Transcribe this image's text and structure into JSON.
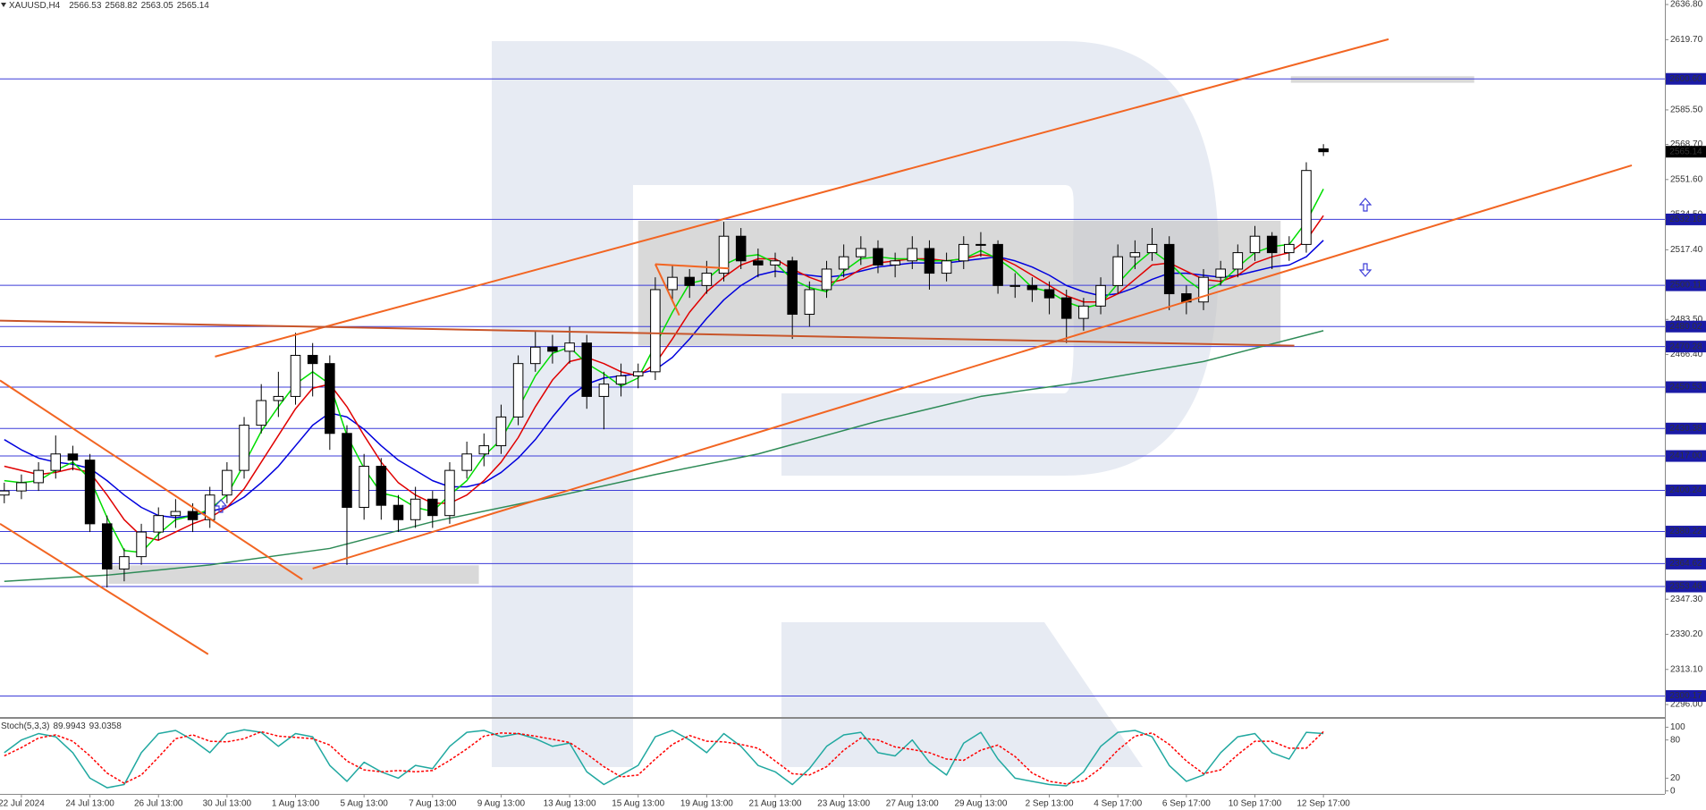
{
  "chart_data": [
    {
      "type": "candlestick",
      "title": "XAUUSD,H4",
      "xlim": [
        -0.25,
        96.93
      ],
      "ylim": [
        2290.8,
        2639.0
      ],
      "xticks": [
        {
          "value": 1,
          "label": "22 Jul 2024"
        },
        {
          "value": 5,
          "label": "24 Jul 13:00"
        },
        {
          "value": 9,
          "label": "26 Jul 13:00"
        },
        {
          "value": 13,
          "label": "30 Jul 13:00"
        },
        {
          "value": 17,
          "label": "1 Aug 13:00"
        },
        {
          "value": 21,
          "label": "5 Aug 13:00"
        },
        {
          "value": 25,
          "label": "7 Aug 13:00"
        },
        {
          "value": 29,
          "label": "9 Aug 13:00"
        },
        {
          "value": 33,
          "label": "13 Aug 13:00"
        },
        {
          "value": 37,
          "label": "15 Aug 13:00"
        },
        {
          "value": 41,
          "label": "19 Aug 13:00"
        },
        {
          "value": 45,
          "label": "21 Aug 13:00"
        },
        {
          "value": 49,
          "label": "23 Aug 13:00"
        },
        {
          "value": 53,
          "label": "27 Aug 13:00"
        },
        {
          "value": 57,
          "label": "29 Aug 13:00"
        },
        {
          "value": 61,
          "label": "2 Sep 13:00"
        },
        {
          "value": 65,
          "label": "4 Sep 17:00"
        },
        {
          "value": 69,
          "label": "6 Sep 17:00"
        },
        {
          "value": 73,
          "label": "10 Sep 17:00"
        },
        {
          "value": 77,
          "label": "12 Sep 17:00"
        }
      ],
      "yticks": [
        {
          "value": 2636.8,
          "label": "2636.80"
        },
        {
          "value": 2619.7,
          "label": "2619.70"
        },
        {
          "value": 2585.5,
          "label": "2585.50"
        },
        {
          "value": 2568.7,
          "label": "2568.70"
        },
        {
          "value": 2551.6,
          "label": "2551.60"
        },
        {
          "value": 2534.5,
          "label": "2534.50"
        },
        {
          "value": 2517.4,
          "label": "2517.40"
        },
        {
          "value": 2483.5,
          "label": "2483.50"
        },
        {
          "value": 2466.4,
          "label": "2466.40"
        },
        {
          "value": 2347.3,
          "label": "2347.30"
        },
        {
          "value": 2330.2,
          "label": "2330.20"
        },
        {
          "value": 2313.1,
          "label": "2313.10"
        },
        {
          "value": 2296,
          "label": "2296.00"
        }
      ],
      "levels": [
        {
          "value": 2600.6,
          "label": "2600.60"
        },
        2532.18,
        2500.11,
        2480.02,
        2470.28,
        2450.53,
        2430.38,
        {
          "value": 2417,
          "label": "2417.00"
        },
        2400.24,
        2380.22,
        2364.62,
        2353.46,
        2300.17
      ],
      "level_color": "#3c3cd8",
      "level_label_color": "#1a1aa6",
      "up_color": "#ffffff",
      "down_color": "#000000",
      "zone_color": "#c4c4c4",
      "candles": [
        [
          2398,
          2404,
          2394,
          2400
        ],
        [
          2400,
          2408,
          2396,
          2404
        ],
        [
          2404,
          2414,
          2400,
          2410
        ],
        [
          2410,
          2427,
          2406,
          2418
        ],
        [
          2418,
          2422,
          2410,
          2415
        ],
        [
          2415,
          2418,
          2380,
          2384
        ],
        [
          2384,
          2388,
          2353,
          2362
        ],
        [
          2362,
          2372,
          2356,
          2368
        ],
        [
          2368,
          2384,
          2364,
          2380
        ],
        [
          2380,
          2392,
          2376,
          2388
        ],
        [
          2388,
          2396,
          2382,
          2390
        ],
        [
          2390,
          2394,
          2380,
          2386
        ],
        [
          2386,
          2402,
          2382,
          2398
        ],
        [
          2398,
          2414,
          2394,
          2410
        ],
        [
          2410,
          2436,
          2406,
          2432
        ],
        [
          2432,
          2452,
          2428,
          2444
        ],
        [
          2444,
          2458,
          2436,
          2446
        ],
        [
          2446,
          2477,
          2442,
          2466
        ],
        [
          2466,
          2472,
          2446,
          2462
        ],
        [
          2462,
          2466,
          2420,
          2428
        ],
        [
          2428,
          2432,
          2364,
          2392
        ],
        [
          2392,
          2418,
          2386,
          2412
        ],
        [
          2412,
          2416,
          2386,
          2393
        ],
        [
          2393,
          2398,
          2380,
          2386
        ],
        [
          2386,
          2402,
          2382,
          2396
        ],
        [
          2396,
          2400,
          2382,
          2388
        ],
        [
          2388,
          2414,
          2384,
          2410
        ],
        [
          2410,
          2424,
          2406,
          2418
        ],
        [
          2418,
          2428,
          2412,
          2422
        ],
        [
          2422,
          2442,
          2418,
          2436
        ],
        [
          2436,
          2466,
          2432,
          2462
        ],
        [
          2462,
          2478,
          2458,
          2470
        ],
        [
          2470,
          2476,
          2462,
          2468
        ],
        [
          2468,
          2480,
          2462,
          2472
        ],
        [
          2472,
          2476,
          2440,
          2446
        ],
        [
          2446,
          2458,
          2430,
          2452
        ],
        [
          2452,
          2462,
          2446,
          2456
        ],
        [
          2456,
          2462,
          2450,
          2458
        ],
        [
          2458,
          2504,
          2454,
          2498
        ],
        [
          2498,
          2510,
          2492,
          2504
        ],
        [
          2504,
          2508,
          2494,
          2500
        ],
        [
          2500,
          2512,
          2496,
          2506
        ],
        [
          2506,
          2531,
          2502,
          2524
        ],
        [
          2524,
          2528,
          2508,
          2512
        ],
        [
          2512,
          2518,
          2504,
          2510
        ],
        [
          2510,
          2516,
          2504,
          2512
        ],
        [
          2512,
          2514,
          2474,
          2486
        ],
        [
          2486,
          2502,
          2480,
          2498
        ],
        [
          2498,
          2512,
          2494,
          2508
        ],
        [
          2508,
          2520,
          2504,
          2514
        ],
        [
          2514,
          2524,
          2510,
          2518
        ],
        [
          2518,
          2522,
          2506,
          2510
        ],
        [
          2510,
          2516,
          2504,
          2512
        ],
        [
          2512,
          2524,
          2508,
          2518
        ],
        [
          2518,
          2522,
          2498,
          2506
        ],
        [
          2506,
          2516,
          2502,
          2512
        ],
        [
          2512,
          2524,
          2508,
          2520
        ],
        [
          2520,
          2526,
          2514,
          2520
        ],
        [
          2520,
          2522,
          2496,
          2500
        ],
        [
          2500,
          2506,
          2494,
          2500
        ],
        [
          2500,
          2504,
          2492,
          2498
        ],
        [
          2498,
          2502,
          2486,
          2494
        ],
        [
          2494,
          2498,
          2472,
          2484
        ],
        [
          2484,
          2494,
          2478,
          2490
        ],
        [
          2490,
          2504,
          2486,
          2500
        ],
        [
          2500,
          2520,
          2496,
          2514
        ],
        [
          2514,
          2522,
          2508,
          2516
        ],
        [
          2516,
          2528,
          2512,
          2520
        ],
        [
          2520,
          2524,
          2488,
          2496
        ],
        [
          2496,
          2500,
          2486,
          2492
        ],
        [
          2492,
          2508,
          2488,
          2504
        ],
        [
          2504,
          2512,
          2500,
          2508
        ],
        [
          2508,
          2520,
          2504,
          2516
        ],
        [
          2516,
          2529,
          2512,
          2524
        ],
        [
          2524,
          2526,
          2508,
          2516
        ],
        [
          2516,
          2524,
          2512,
          2520
        ],
        [
          2520,
          2560,
          2516,
          2556
        ],
        [
          2566.53,
          2568.82,
          2563.05,
          2565.14
        ]
      ],
      "series": [
        {
          "color": "#2e8b57",
          "x": [
            0,
            6,
            12,
            19,
            25,
            32,
            38,
            44,
            51,
            57,
            63,
            70,
            77
          ],
          "values": [
            2356,
            2359,
            2364,
            2372,
            2385,
            2397,
            2408,
            2418,
            2434,
            2446,
            2453,
            2463,
            2478
          ]
        },
        {
          "color": "#0000dd",
          "values": [
            2425,
            2420,
            2416,
            2414,
            2413,
            2411,
            2405,
            2398,
            2392,
            2388,
            2387,
            2388,
            2390,
            2392,
            2397,
            2404,
            2412,
            2422,
            2432,
            2438,
            2436,
            2430,
            2422,
            2415,
            2410,
            2405,
            2402,
            2402,
            2404,
            2409,
            2416,
            2425,
            2436,
            2446,
            2452,
            2455,
            2456,
            2457,
            2459,
            2465,
            2474,
            2484,
            2493,
            2500,
            2505,
            2507,
            2506,
            2505,
            2504,
            2505,
            2507,
            2509,
            2510,
            2511,
            2511,
            2511,
            2512,
            2513,
            2514,
            2512,
            2509,
            2505,
            2500,
            2497,
            2495,
            2496,
            2499,
            2503,
            2506,
            2506,
            2505,
            2504,
            2505,
            2507,
            2509,
            2510,
            2514,
            2522
          ]
        },
        {
          "color": "#e00000",
          "values": [
            2412,
            2410,
            2408,
            2409,
            2411,
            2409,
            2398,
            2386,
            2378,
            2376,
            2380,
            2384,
            2387,
            2392,
            2401,
            2414,
            2427,
            2440,
            2450,
            2452,
            2441,
            2427,
            2414,
            2404,
            2398,
            2394,
            2394,
            2398,
            2405,
            2414,
            2426,
            2441,
            2454,
            2463,
            2465,
            2462,
            2458,
            2456,
            2462,
            2474,
            2487,
            2497,
            2504,
            2510,
            2513,
            2513,
            2508,
            2504,
            2501,
            2503,
            2508,
            2511,
            2512,
            2513,
            2513,
            2512,
            2513,
            2515,
            2514,
            2510,
            2505,
            2500,
            2495,
            2492,
            2492,
            2496,
            2503,
            2510,
            2511,
            2507,
            2503,
            2502,
            2505,
            2511,
            2514,
            2516,
            2522,
            2534
          ]
        },
        {
          "color": "#00dd00",
          "values": [
            2405,
            2404,
            2405,
            2410,
            2414,
            2406,
            2387,
            2371,
            2370,
            2379,
            2386,
            2388,
            2391,
            2398,
            2413,
            2429,
            2441,
            2452,
            2458,
            2452,
            2427,
            2411,
            2399,
            2397,
            2392,
            2390,
            2398,
            2405,
            2417,
            2425,
            2440,
            2456,
            2467,
            2470,
            2462,
            2457,
            2451,
            2455,
            2471,
            2487,
            2501,
            2503,
            2510,
            2514,
            2515,
            2511,
            2503,
            2499,
            2497,
            2507,
            2513,
            2514,
            2513,
            2513,
            2512,
            2512,
            2513,
            2517,
            2513,
            2507,
            2499,
            2497,
            2492,
            2489,
            2491,
            2501,
            2510,
            2517,
            2511,
            2503,
            2497,
            2501,
            2509,
            2516,
            2519,
            2520,
            2531,
            2547
          ]
        }
      ],
      "trendlines": [
        {
          "color": "#f26522",
          "x": [
            12.3,
            80.8
          ],
          "y": [
            2465.4,
            2619.9
          ]
        },
        {
          "color": "#f26522",
          "x": [
            18.0,
            95.0
          ],
          "y": [
            2362.2,
            2558.5
          ]
        },
        {
          "color": "#f26522",
          "x": [
            -0.25,
            17.4
          ],
          "y": [
            2453.8,
            2356.9
          ]
        },
        {
          "color": "#f26522",
          "x": [
            -0.25,
            11.9
          ],
          "y": [
            2384.0,
            2320.5
          ]
        },
        {
          "color": "#c8552a",
          "x": [
            -0.25,
            75.3
          ],
          "y": [
            2482.9,
            2470.7
          ]
        },
        {
          "color": "#f26522",
          "x": [
            38.0,
            42.3
          ],
          "y": [
            2510.4,
            2508.3
          ]
        },
        {
          "color": "#f26522",
          "x": [
            38.0,
            39.4
          ],
          "y": [
            2510.4,
            2485.5
          ]
        }
      ],
      "zones": [
        {
          "x": [
            37.0,
            74.5
          ],
          "y": [
            2470.7,
            2531.5
          ]
        },
        {
          "x": [
            75.1,
            85.8
          ],
          "y": [
            2598.7,
            2601.9
          ]
        },
        {
          "x": [
            6.1,
            27.7
          ],
          "y": [
            2354.8,
            2363.8
          ]
        }
      ]
    },
    {
      "type": "line",
      "title": "Stoch(5,3,3)",
      "xlim": [
        -0.25,
        96.93
      ],
      "ylim": [
        -4.7,
        111.8
      ],
      "yticks": [
        100,
        80,
        20,
        0
      ],
      "series": [
        {
          "color": "#20a8a0",
          "values": [
            60,
            80,
            90,
            85,
            60,
            20,
            5,
            10,
            60,
            90,
            95,
            80,
            60,
            90,
            96,
            92,
            70,
            90,
            85,
            40,
            15,
            45,
            30,
            20,
            40,
            35,
            70,
            92,
            95,
            85,
            90,
            82,
            70,
            75,
            30,
            10,
            25,
            40,
            85,
            95,
            80,
            60,
            90,
            70,
            40,
            30,
            10,
            35,
            70,
            88,
            92,
            60,
            55,
            80,
            45,
            25,
            75,
            92,
            50,
            20,
            15,
            10,
            8,
            30,
            70,
            92,
            95,
            85,
            40,
            15,
            25,
            60,
            85,
            90,
            60,
            50,
            92,
            89.9943
          ]
        },
        {
          "color": "#ff0000",
          "dash": true,
          "values": [
            55,
            68,
            83,
            88,
            78,
            55,
            28,
            12,
            25,
            53,
            82,
            88,
            78,
            77,
            82,
            93,
            86,
            84,
            82,
            72,
            47,
            33,
            30,
            32,
            30,
            32,
            48,
            66,
            86,
            91,
            90,
            86,
            81,
            76,
            58,
            38,
            22,
            25,
            50,
            73,
            87,
            78,
            77,
            73,
            67,
            47,
            27,
            25,
            38,
            64,
            83,
            80,
            69,
            65,
            60,
            50,
            48,
            64,
            72,
            54,
            28,
            15,
            11,
            16,
            36,
            64,
            86,
            91,
            73,
            47,
            27,
            33,
            57,
            78,
            78,
            67,
            67,
            93.0358
          ]
        }
      ]
    }
  ]
}
